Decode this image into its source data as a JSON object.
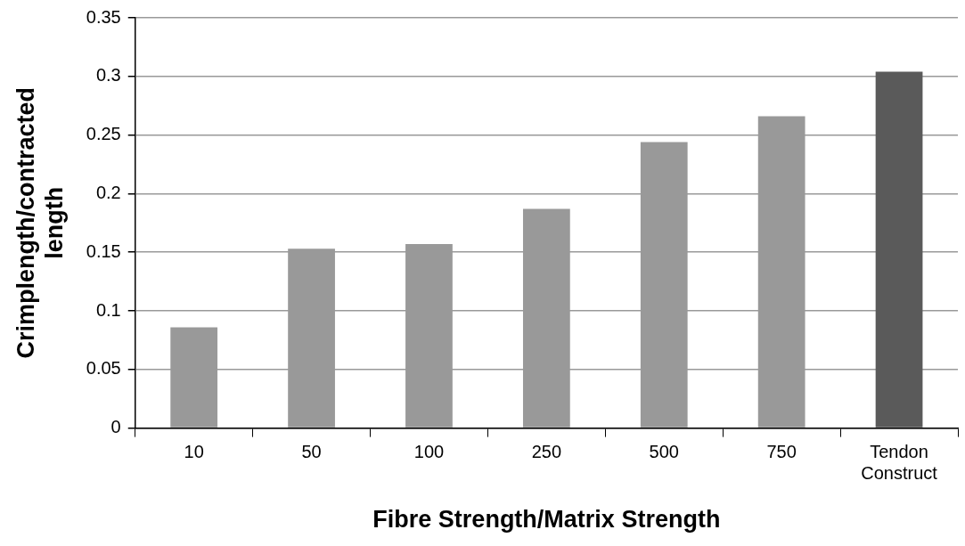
{
  "chart_data": {
    "type": "bar",
    "xlabel": "Fibre Strength/Matrix Strength",
    "ylabel": "Crimplength/contracted length",
    "categories": [
      "10",
      "50",
      "100",
      "250",
      "500",
      "750",
      "Tendon Construct"
    ],
    "values": [
      0.086,
      0.153,
      0.157,
      0.187,
      0.244,
      0.266,
      0.304
    ],
    "colors": [
      "#999999",
      "#999999",
      "#999999",
      "#999999",
      "#999999",
      "#999999",
      "#5a5a5a"
    ],
    "ylim": [
      0,
      0.35
    ],
    "yticks": [
      0,
      0.05,
      0.1,
      0.15,
      0.2,
      0.25,
      0.3,
      0.35
    ],
    "grid": "y",
    "legend": false
  }
}
